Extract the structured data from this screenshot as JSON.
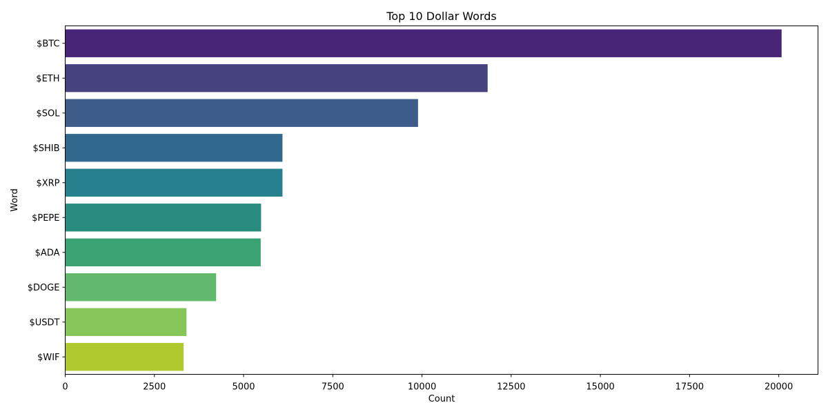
{
  "chart_data": {
    "type": "bar",
    "orientation": "horizontal",
    "title": "Top 10 Dollar Words",
    "xlabel": "Count",
    "ylabel": "Word",
    "categories": [
      "$BTC",
      "$ETH",
      "$SOL",
      "$SHIB",
      "$XRP",
      "$PEPE",
      "$ADA",
      "$DOGE",
      "$USDT",
      "$WIF"
    ],
    "values": [
      20080,
      11840,
      9890,
      6090,
      6090,
      5490,
      5480,
      4230,
      3400,
      3320
    ],
    "colors": [
      "#482576",
      "#46427f",
      "#3e5c89",
      "#31688e",
      "#26808e",
      "#2a8c7e",
      "#3ba373",
      "#62b86c",
      "#86c558",
      "#b0c92f"
    ],
    "xlim": [
      0,
      21100
    ],
    "xticks": [
      0,
      2500,
      5000,
      7500,
      10000,
      12500,
      15000,
      17500,
      20000
    ],
    "grid": false,
    "legend": "none"
  }
}
